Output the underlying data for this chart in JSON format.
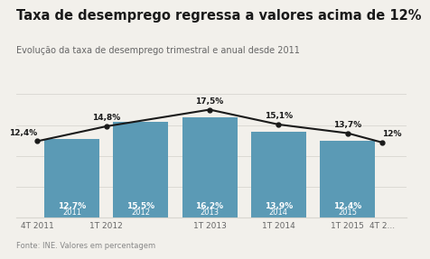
{
  "title": "Taxa de desemprego regressa a valores acima de 12%",
  "subtitle": "Evolução da taxa de desemprego trimestral e anual desde 2011",
  "footer": "Fonte: INE. Valores em percentagem",
  "bar_positions": [
    1.5,
    3.5,
    5.5,
    7.5,
    9.5
  ],
  "bar_values": [
    12.7,
    15.5,
    16.2,
    13.9,
    12.4
  ],
  "bar_labels_top": [
    "12,7%",
    "15,5%",
    "16,2%",
    "13,9%",
    "12,4%"
  ],
  "bar_labels_bottom": [
    "2011",
    "2012",
    "2013",
    "2014",
    "2015"
  ],
  "bar_color": "#5b9ab5",
  "bar_width": 1.6,
  "line_positions": [
    0.5,
    2.5,
    5.5,
    7.5,
    9.5,
    10.5
  ],
  "line_values": [
    12.4,
    14.8,
    17.5,
    15.1,
    13.7,
    12.2
  ],
  "line_labels": [
    "12,4%",
    "14,8%",
    "17,5%",
    "15,1%",
    "13,7%",
    "12"
  ],
  "line_label_ha": [
    "right",
    "center",
    "center",
    "center",
    "center",
    "left"
  ],
  "xtick_positions": [
    0.5,
    2.5,
    5.5,
    7.5,
    9.5,
    10.5
  ],
  "xtick_labels": [
    "4T 2011",
    "1T 2012",
    "1T 2013",
    "1T 2014",
    "1T 2015",
    "4T 2..."
  ],
  "xlim": [
    -0.1,
    11.2
  ],
  "ylim": [
    0,
    20
  ],
  "background_color": "#f2f0eb",
  "plot_bg_color": "#f2f0eb",
  "line_color": "#1a1a1a",
  "title_color": "#1a1a1a",
  "subtitle_color": "#666666",
  "footer_color": "#888888",
  "grid_color": "#d8d6d0",
  "title_fontsize": 10.5,
  "subtitle_fontsize": 7,
  "footer_fontsize": 6,
  "bar_label_fontsize": 6.5,
  "line_label_fontsize": 6.5,
  "xtick_fontsize": 6.5
}
